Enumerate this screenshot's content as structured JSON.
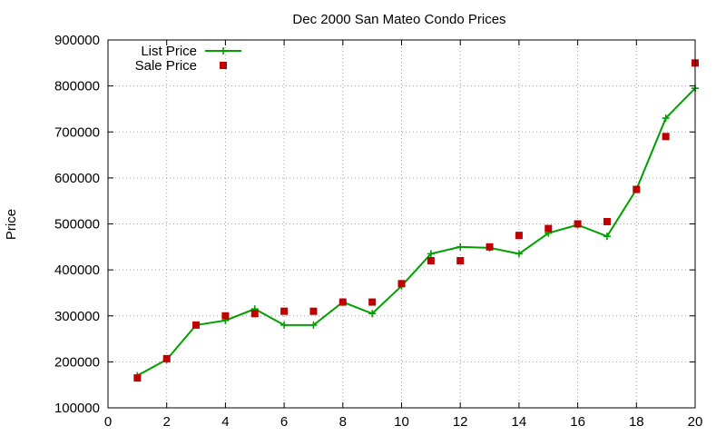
{
  "chart_data": {
    "type": "line",
    "title": "Dec 2000 San Mateo Condo Prices",
    "xlabel": "",
    "ylabel": "Price",
    "xlim": [
      0,
      20
    ],
    "ylim": [
      100000,
      900000
    ],
    "x_ticks": [
      "0",
      "2",
      "4",
      "6",
      "8",
      "10",
      "12",
      "14",
      "16",
      "18",
      "20"
    ],
    "y_ticks": [
      "100000",
      "200000",
      "300000",
      "400000",
      "500000",
      "600000",
      "700000",
      "800000",
      "900000"
    ],
    "grid": true,
    "legend_position": "top-left",
    "x": [
      1,
      2,
      3,
      4,
      5,
      6,
      7,
      8,
      9,
      10,
      11,
      12,
      13,
      14,
      15,
      16,
      17,
      18,
      19,
      20
    ],
    "series": [
      {
        "name": "List Price",
        "style": "line-plus",
        "color": "#00a000",
        "values": [
          170000,
          205000,
          280000,
          290000,
          315000,
          280000,
          280000,
          330000,
          305000,
          365000,
          435000,
          450000,
          448000,
          435000,
          480000,
          498000,
          473000,
          575000,
          730000,
          795000
        ]
      },
      {
        "name": "Sale Price",
        "style": "square",
        "color": "#c00000",
        "values": [
          165000,
          207000,
          280000,
          300000,
          305000,
          310000,
          310000,
          330000,
          330000,
          370000,
          420000,
          420000,
          450000,
          475000,
          490000,
          500000,
          505000,
          575000,
          690000,
          850000
        ]
      }
    ]
  }
}
